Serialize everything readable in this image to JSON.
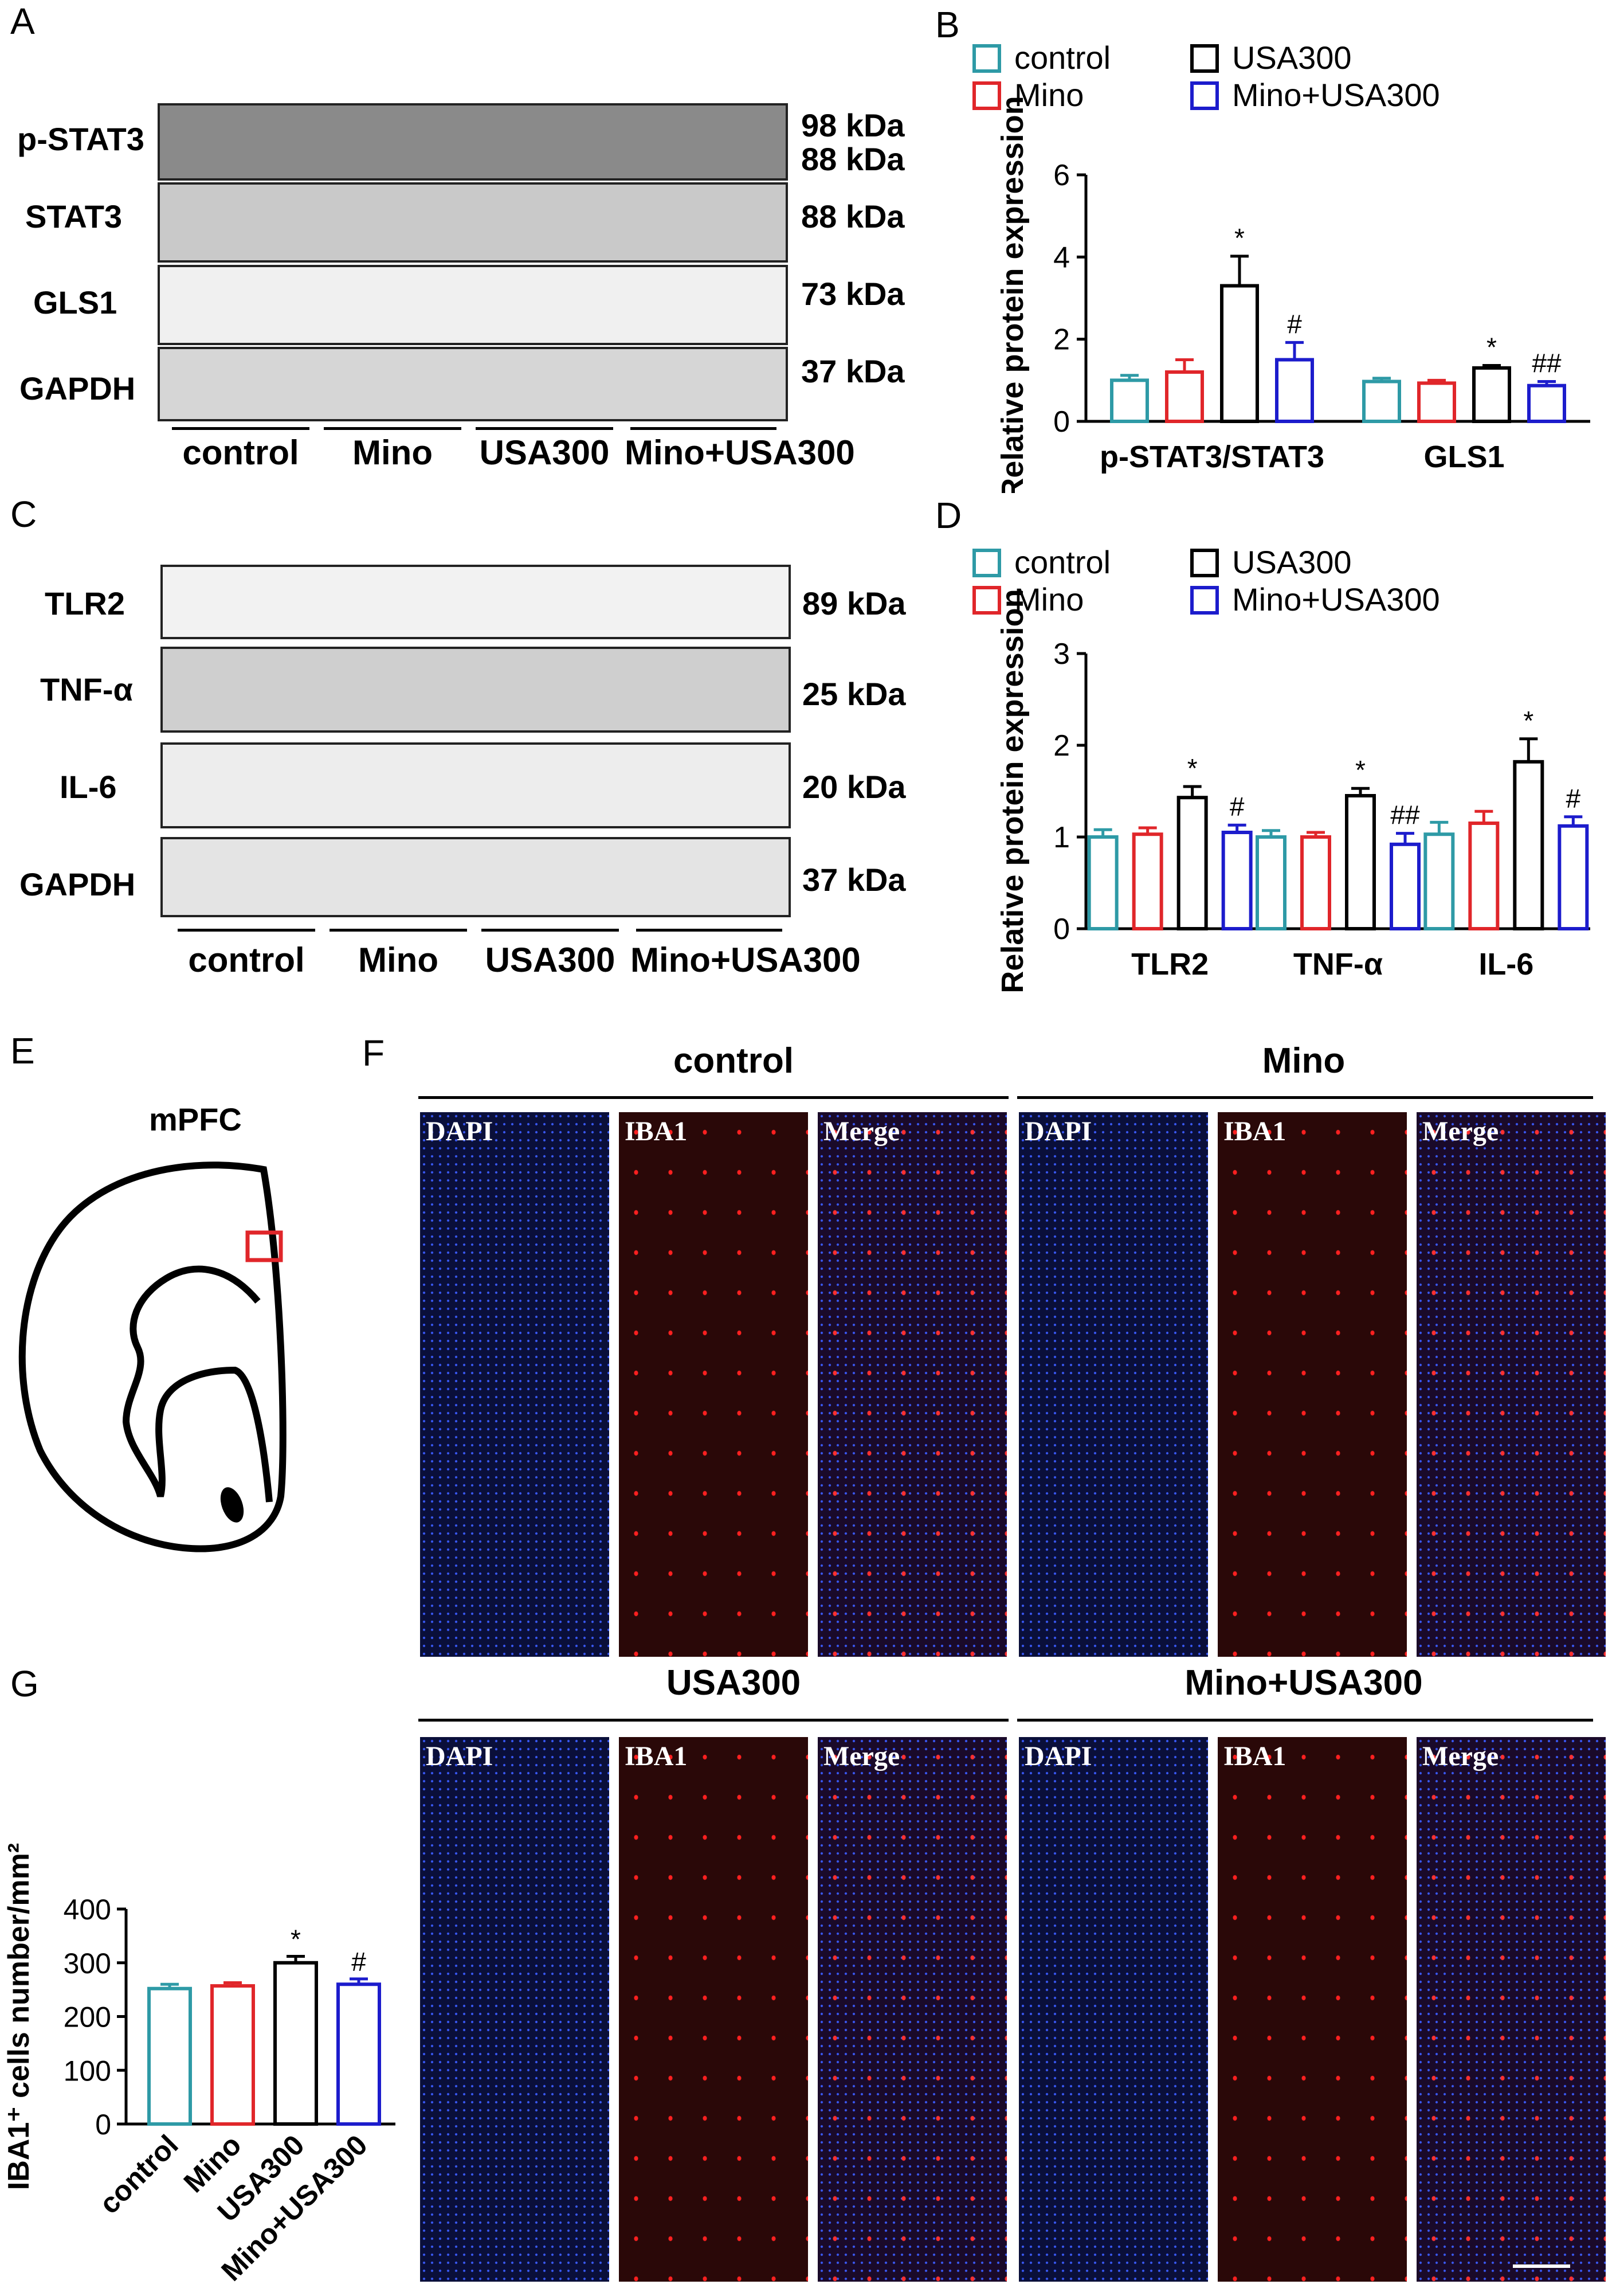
{
  "panels": {
    "A": "A",
    "B": "B",
    "C": "C",
    "D": "D",
    "E": "E",
    "F": "F",
    "G": "G"
  },
  "blotA": {
    "rows": [
      {
        "label": "p-STAT3",
        "kda1": "98 kDa",
        "kda2": "88 kDa"
      },
      {
        "label": "STAT3",
        "kda1": "88 kDa"
      },
      {
        "label": "GLS1",
        "kda1": "73 kDa"
      },
      {
        "label": "GAPDH",
        "kda1": "37 kDa"
      }
    ],
    "groups": [
      "control",
      "Mino",
      "USA300",
      "Mino+USA300"
    ]
  },
  "blotC": {
    "rows": [
      {
        "label": "TLR2",
        "kda1": "89 kDa"
      },
      {
        "label": "TNF-α",
        "kda1": "25 kDa"
      },
      {
        "label": "IL-6",
        "kda1": "20 kDa"
      },
      {
        "label": "GAPDH",
        "kda1": "37 kDa"
      }
    ],
    "groups": [
      "control",
      "Mino",
      "USA300",
      "Mino+USA300"
    ]
  },
  "colors": {
    "control": "#2e9aa6",
    "Mino": "#e0262a",
    "USA300": "#000000",
    "MinoUSA": "#1c1ccc"
  },
  "chart_data": [
    {
      "id": "B",
      "type": "bar",
      "ylabel": "Relative protein expression",
      "ylim": [
        0,
        6
      ],
      "yticks": [
        "0",
        "2",
        "4",
        "6"
      ],
      "categories": [
        "p-STAT3/STAT3",
        "GLS1"
      ],
      "legend": [
        "control",
        "Mino",
        "USA300",
        "Mino+USA300"
      ],
      "series": [
        {
          "name": "control",
          "values": [
            1.0,
            0.97
          ],
          "err": [
            0.12,
            0.08
          ],
          "ann": [
            "",
            ""
          ]
        },
        {
          "name": "Mino",
          "values": [
            1.2,
            0.93
          ],
          "err": [
            0.3,
            0.07
          ],
          "ann": [
            "",
            ""
          ]
        },
        {
          "name": "USA300",
          "values": [
            3.3,
            1.3
          ],
          "err": [
            0.72,
            0.06
          ],
          "ann": [
            "*",
            "*"
          ]
        },
        {
          "name": "Mino+USA300",
          "values": [
            1.5,
            0.87
          ],
          "err": [
            0.42,
            0.1
          ],
          "ann": [
            "#",
            "##"
          ]
        }
      ]
    },
    {
      "id": "D",
      "type": "bar",
      "ylabel": "Relative protein expression",
      "ylim": [
        0,
        3
      ],
      "yticks": [
        "0",
        "1",
        "2",
        "3"
      ],
      "categories": [
        "TLR2",
        "TNF-α",
        "IL-6"
      ],
      "legend": [
        "control",
        "Mino",
        "USA300",
        "Mino+USA300"
      ],
      "series": [
        {
          "name": "control",
          "values": [
            1.0,
            1.0,
            1.03
          ],
          "err": [
            0.08,
            0.07,
            0.13
          ],
          "ann": [
            "",
            "",
            ""
          ]
        },
        {
          "name": "Mino",
          "values": [
            1.03,
            1.0,
            1.15
          ],
          "err": [
            0.07,
            0.05,
            0.13
          ],
          "ann": [
            "",
            "",
            ""
          ]
        },
        {
          "name": "USA300",
          "values": [
            1.43,
            1.45,
            1.82
          ],
          "err": [
            0.12,
            0.08,
            0.25
          ],
          "ann": [
            "*",
            "*",
            "*"
          ]
        },
        {
          "name": "Mino+USA300",
          "values": [
            1.05,
            0.92,
            1.12
          ],
          "err": [
            0.08,
            0.12,
            0.1
          ],
          "ann": [
            "#",
            "##",
            "#"
          ]
        }
      ]
    },
    {
      "id": "G",
      "type": "bar",
      "ylabel": "IBA1⁺ cells number/mm²",
      "ylim": [
        0,
        400
      ],
      "yticks": [
        "0",
        "100",
        "200",
        "300",
        "400"
      ],
      "categories": [
        "control",
        "Mino",
        "USA300",
        "Mino+USA300"
      ],
      "values": [
        252,
        257,
        300,
        260
      ],
      "err": [
        8,
        6,
        12,
        10
      ],
      "ann": [
        "",
        "",
        "*",
        "#"
      ]
    }
  ],
  "panelE": {
    "title": "mPFC"
  },
  "panelF": {
    "groups": [
      "control",
      "Mino",
      "USA300",
      "Mino+USA300"
    ],
    "channels": [
      "DAPI",
      "IBA1",
      "Merge"
    ]
  }
}
